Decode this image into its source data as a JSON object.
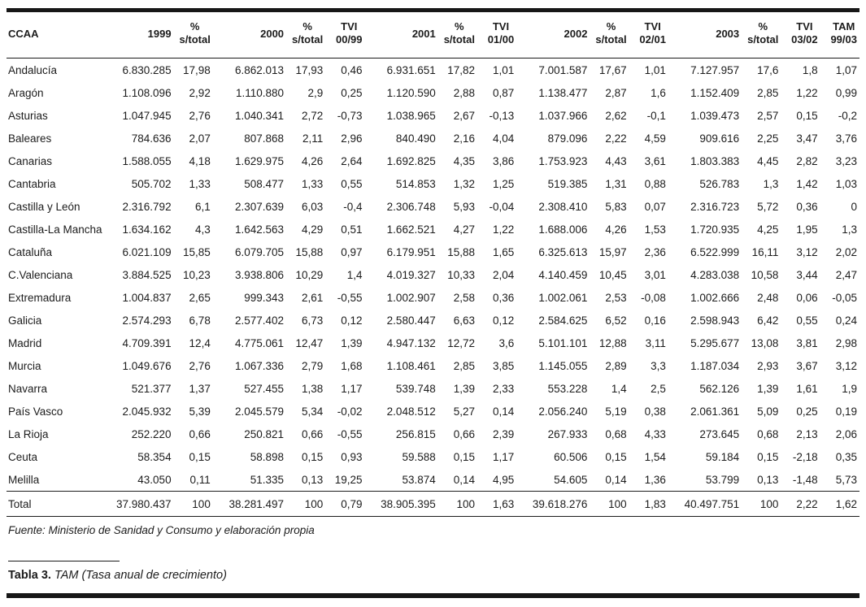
{
  "table": {
    "header": [
      {
        "l1": "CCAA",
        "l2": ""
      },
      {
        "l1": "1999",
        "l2": ""
      },
      {
        "l1": "%",
        "l2": "s/total"
      },
      {
        "l1": "2000",
        "l2": ""
      },
      {
        "l1": "%",
        "l2": "s/total"
      },
      {
        "l1": "TVI",
        "l2": "00/99"
      },
      {
        "l1": "2001",
        "l2": ""
      },
      {
        "l1": "%",
        "l2": "s/total"
      },
      {
        "l1": "TVI",
        "l2": "01/00"
      },
      {
        "l1": "2002",
        "l2": ""
      },
      {
        "l1": "%",
        "l2": "s/total"
      },
      {
        "l1": "TVI",
        "l2": "02/01"
      },
      {
        "l1": "2003",
        "l2": ""
      },
      {
        "l1": "%",
        "l2": "s/total"
      },
      {
        "l1": "TVI",
        "l2": "03/02"
      },
      {
        "l1": "TAM",
        "l2": "99/03"
      }
    ],
    "rows": [
      [
        "Andalucía",
        "6.830.285",
        "17,98",
        "6.862.013",
        "17,93",
        "0,46",
        "6.931.651",
        "17,82",
        "1,01",
        "7.001.587",
        "17,67",
        "1,01",
        "7.127.957",
        "17,6",
        "1,8",
        "1,07"
      ],
      [
        "Aragón",
        "1.108.096",
        "2,92",
        "1.110.880",
        "2,9",
        "0,25",
        "1.120.590",
        "2,88",
        "0,87",
        "1.138.477",
        "2,87",
        "1,6",
        "1.152.409",
        "2,85",
        "1,22",
        "0,99"
      ],
      [
        "Asturias",
        "1.047.945",
        "2,76",
        "1.040.341",
        "2,72",
        "-0,73",
        "1.038.965",
        "2,67",
        "-0,13",
        "1.037.966",
        "2,62",
        "-0,1",
        "1.039.473",
        "2,57",
        "0,15",
        "-0,2"
      ],
      [
        "Baleares",
        "784.636",
        "2,07",
        "807.868",
        "2,11",
        "2,96",
        "840.490",
        "2,16",
        "4,04",
        "879.096",
        "2,22",
        "4,59",
        "909.616",
        "2,25",
        "3,47",
        "3,76"
      ],
      [
        "Canarias",
        "1.588.055",
        "4,18",
        "1.629.975",
        "4,26",
        "2,64",
        "1.692.825",
        "4,35",
        "3,86",
        "1.753.923",
        "4,43",
        "3,61",
        "1.803.383",
        "4,45",
        "2,82",
        "3,23"
      ],
      [
        "Cantabria",
        "505.702",
        "1,33",
        "508.477",
        "1,33",
        "0,55",
        "514.853",
        "1,32",
        "1,25",
        "519.385",
        "1,31",
        "0,88",
        "526.783",
        "1,3",
        "1,42",
        "1,03"
      ],
      [
        "Castilla y León",
        "2.316.792",
        "6,1",
        "2.307.639",
        "6,03",
        "-0,4",
        "2.306.748",
        "5,93",
        "-0,04",
        "2.308.410",
        "5,83",
        "0,07",
        "2.316.723",
        "5,72",
        "0,36",
        "0"
      ],
      [
        "Castilla-La Mancha",
        "1.634.162",
        "4,3",
        "1.642.563",
        "4,29",
        "0,51",
        "1.662.521",
        "4,27",
        "1,22",
        "1.688.006",
        "4,26",
        "1,53",
        "1.720.935",
        "4,25",
        "1,95",
        "1,3"
      ],
      [
        "Cataluña",
        "6.021.109",
        "15,85",
        "6.079.705",
        "15,88",
        "0,97",
        "6.179.951",
        "15,88",
        "1,65",
        "6.325.613",
        "15,97",
        "2,36",
        "6.522.999",
        "16,11",
        "3,12",
        "2,02"
      ],
      [
        "C.Valenciana",
        "3.884.525",
        "10,23",
        "3.938.806",
        "10,29",
        "1,4",
        "4.019.327",
        "10,33",
        "2,04",
        "4.140.459",
        "10,45",
        "3,01",
        "4.283.038",
        "10,58",
        "3,44",
        "2,47"
      ],
      [
        "Extremadura",
        "1.004.837",
        "2,65",
        "999.343",
        "2,61",
        "-0,55",
        "1.002.907",
        "2,58",
        "0,36",
        "1.002.061",
        "2,53",
        "-0,08",
        "1.002.666",
        "2,48",
        "0,06",
        "-0,05"
      ],
      [
        "Galicia",
        "2.574.293",
        "6,78",
        "2.577.402",
        "6,73",
        "0,12",
        "2.580.447",
        "6,63",
        "0,12",
        "2.584.625",
        "6,52",
        "0,16",
        "2.598.943",
        "6,42",
        "0,55",
        "0,24"
      ],
      [
        "Madrid",
        "4.709.391",
        "12,4",
        "4.775.061",
        "12,47",
        "1,39",
        "4.947.132",
        "12,72",
        "3,6",
        "5.101.101",
        "12,88",
        "3,11",
        "5.295.677",
        "13,08",
        "3,81",
        "2,98"
      ],
      [
        "Murcia",
        "1.049.676",
        "2,76",
        "1.067.336",
        "2,79",
        "1,68",
        "1.108.461",
        "2,85",
        "3,85",
        "1.145.055",
        "2,89",
        "3,3",
        "1.187.034",
        "2,93",
        "3,67",
        "3,12"
      ],
      [
        "Navarra",
        "521.377",
        "1,37",
        "527.455",
        "1,38",
        "1,17",
        "539.748",
        "1,39",
        "2,33",
        "553.228",
        "1,4",
        "2,5",
        "562.126",
        "1,39",
        "1,61",
        "1,9"
      ],
      [
        "País Vasco",
        "2.045.932",
        "5,39",
        "2.045.579",
        "5,34",
        "-0,02",
        "2.048.512",
        "5,27",
        "0,14",
        "2.056.240",
        "5,19",
        "0,38",
        "2.061.361",
        "5,09",
        "0,25",
        "0,19"
      ],
      [
        "La Rioja",
        "252.220",
        "0,66",
        "250.821",
        "0,66",
        "-0,55",
        "256.815",
        "0,66",
        "2,39",
        "267.933",
        "0,68",
        "4,33",
        "273.645",
        "0,68",
        "2,13",
        "2,06"
      ],
      [
        "Ceuta",
        "58.354",
        "0,15",
        "58.898",
        "0,15",
        "0,93",
        "59.588",
        "0,15",
        "1,17",
        "60.506",
        "0,15",
        "1,54",
        "59.184",
        "0,15",
        "-2,18",
        "0,35"
      ],
      [
        "Melilla",
        "43.050",
        "0,11",
        "51.335",
        "0,13",
        "19,25",
        "53.874",
        "0,14",
        "4,95",
        "54.605",
        "0,14",
        "1,36",
        "53.799",
        "0,13",
        "-1,48",
        "5,73"
      ]
    ],
    "total": [
      "Total",
      "37.980.437",
      "100",
      "38.281.497",
      "100",
      "0,79",
      "38.905.395",
      "100",
      "1,63",
      "39.618.276",
      "100",
      "1,83",
      "40.497.751",
      "100",
      "2,22",
      "1,62"
    ]
  },
  "source": "Fuente: Ministerio de Sanidad y Consumo y elaboración propia",
  "caption": {
    "label": "Tabla 3.",
    "text": "TAM (Tasa anual de crecimiento)"
  }
}
